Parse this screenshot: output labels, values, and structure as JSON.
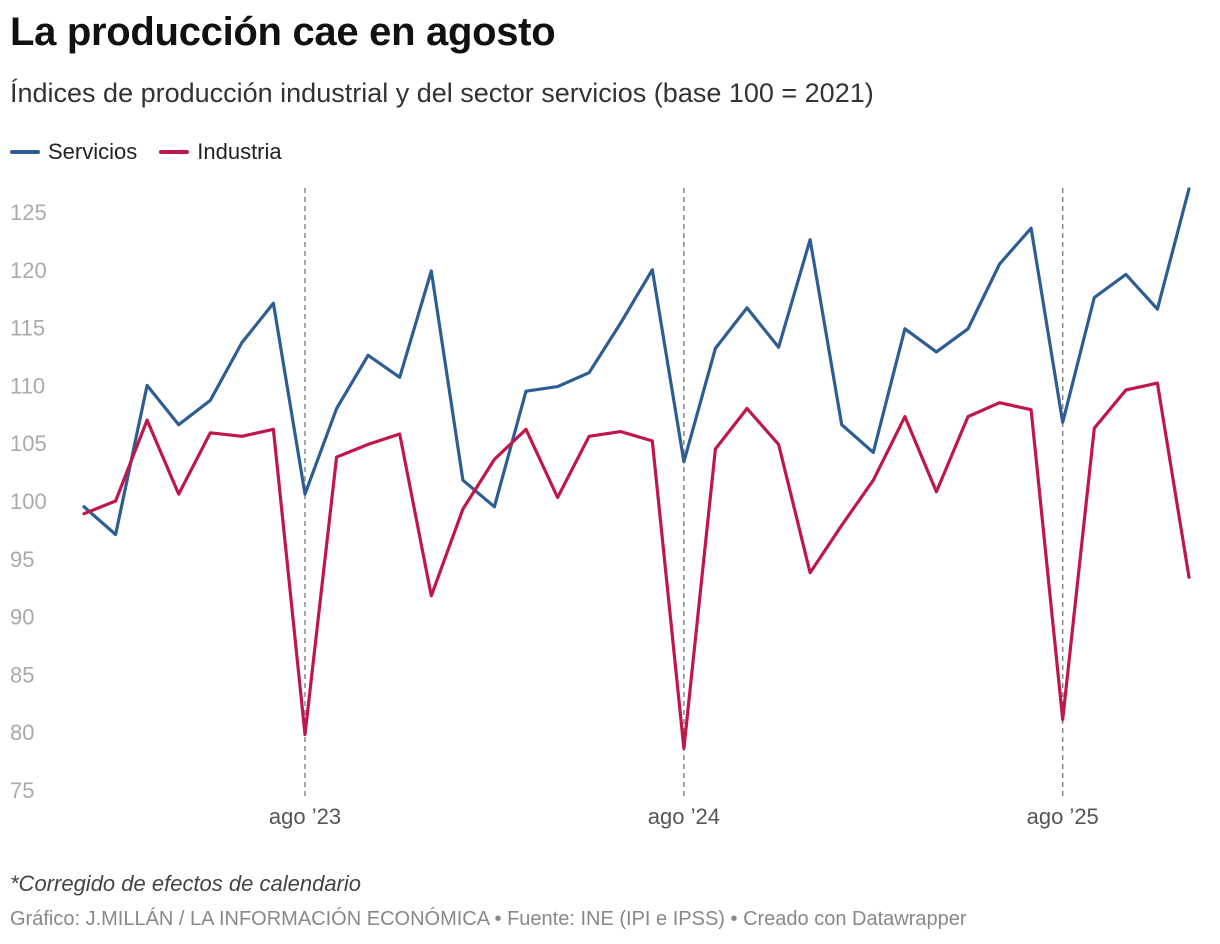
{
  "header": {
    "title": "La producción cae en agosto",
    "subtitle": "Índices de producción industrial y del sector servicios (base 100 = 2021)"
  },
  "footer": {
    "note": "*Corregido de efectos de calendario",
    "source": "Gráfico: J.MILLÁN / LA INFORMACIÓN ECONÓMICA • Fuente: INE (IPI e IPSS) • Creado con Datawrapper"
  },
  "colors": {
    "servicios": "#2e5d94",
    "industria": "#c0174a",
    "axis_text": "#aaaaaa",
    "marker": "#888888"
  },
  "chart_data": {
    "type": "line",
    "x_unit": "month",
    "x": [
      "2023-01",
      "2023-02",
      "2023-03",
      "2023-04",
      "2023-05",
      "2023-06",
      "2023-07",
      "2023-08",
      "2023-09",
      "2023-10",
      "2023-11",
      "2023-12",
      "2024-01",
      "2024-02",
      "2024-03",
      "2024-04",
      "2024-05",
      "2024-06",
      "2024-07",
      "2024-08",
      "2024-09",
      "2024-10",
      "2024-11",
      "2024-12",
      "2025-01",
      "2025-02",
      "2025-03",
      "2025-04",
      "2025-05",
      "2025-06",
      "2025-07",
      "2025-08"
    ],
    "series": [
      {
        "name": "Servicios",
        "color": "#2e5d94",
        "values": [
          99.5,
          97.1,
          110.0,
          106.6,
          108.7,
          113.7,
          117.1,
          100.6,
          108.0,
          112.6,
          110.7,
          119.9,
          101.8,
          99.5,
          109.5,
          109.9,
          111.1,
          115.4,
          120.0,
          103.4,
          113.2,
          116.7,
          113.3,
          122.6,
          106.6,
          104.2,
          114.9,
          112.9,
          114.9,
          120.5,
          123.6,
          106.8
        ]
      },
      {
        "name": "Industria",
        "color": "#c0174a",
        "values": [
          98.9,
          100.0,
          107.0,
          100.6,
          105.9,
          105.6,
          106.2,
          79.8,
          103.8,
          104.9,
          105.8,
          91.8,
          99.3,
          103.6,
          106.2,
          100.3,
          105.6,
          106.0,
          105.2,
          78.6,
          104.5,
          108.0,
          104.9,
          93.8,
          97.9,
          101.8,
          107.3,
          100.8,
          107.3,
          108.5,
          107.9,
          81.1
        ]
      }
    ],
    "series_tail": {
      "x": [
        "2025-09",
        "2025-10",
        "2025-11",
        "2025-12"
      ],
      "Servicios": [
        117.6,
        119.6,
        116.6,
        127.0
      ],
      "Industria": [
        106.3,
        109.6,
        110.2,
        93.4
      ]
    },
    "yticks": [
      75,
      80,
      85,
      90,
      95,
      100,
      105,
      110,
      115,
      120,
      125
    ],
    "ylim": [
      75,
      127
    ],
    "xtick_labels": [
      {
        "x": "2023-08",
        "label": "ago ’23"
      },
      {
        "x": "2024-08",
        "label": "ago ’24"
      },
      {
        "x": "2025-08",
        "label": "ago ’25"
      }
    ],
    "grid": false,
    "legend_position": "top-left"
  }
}
